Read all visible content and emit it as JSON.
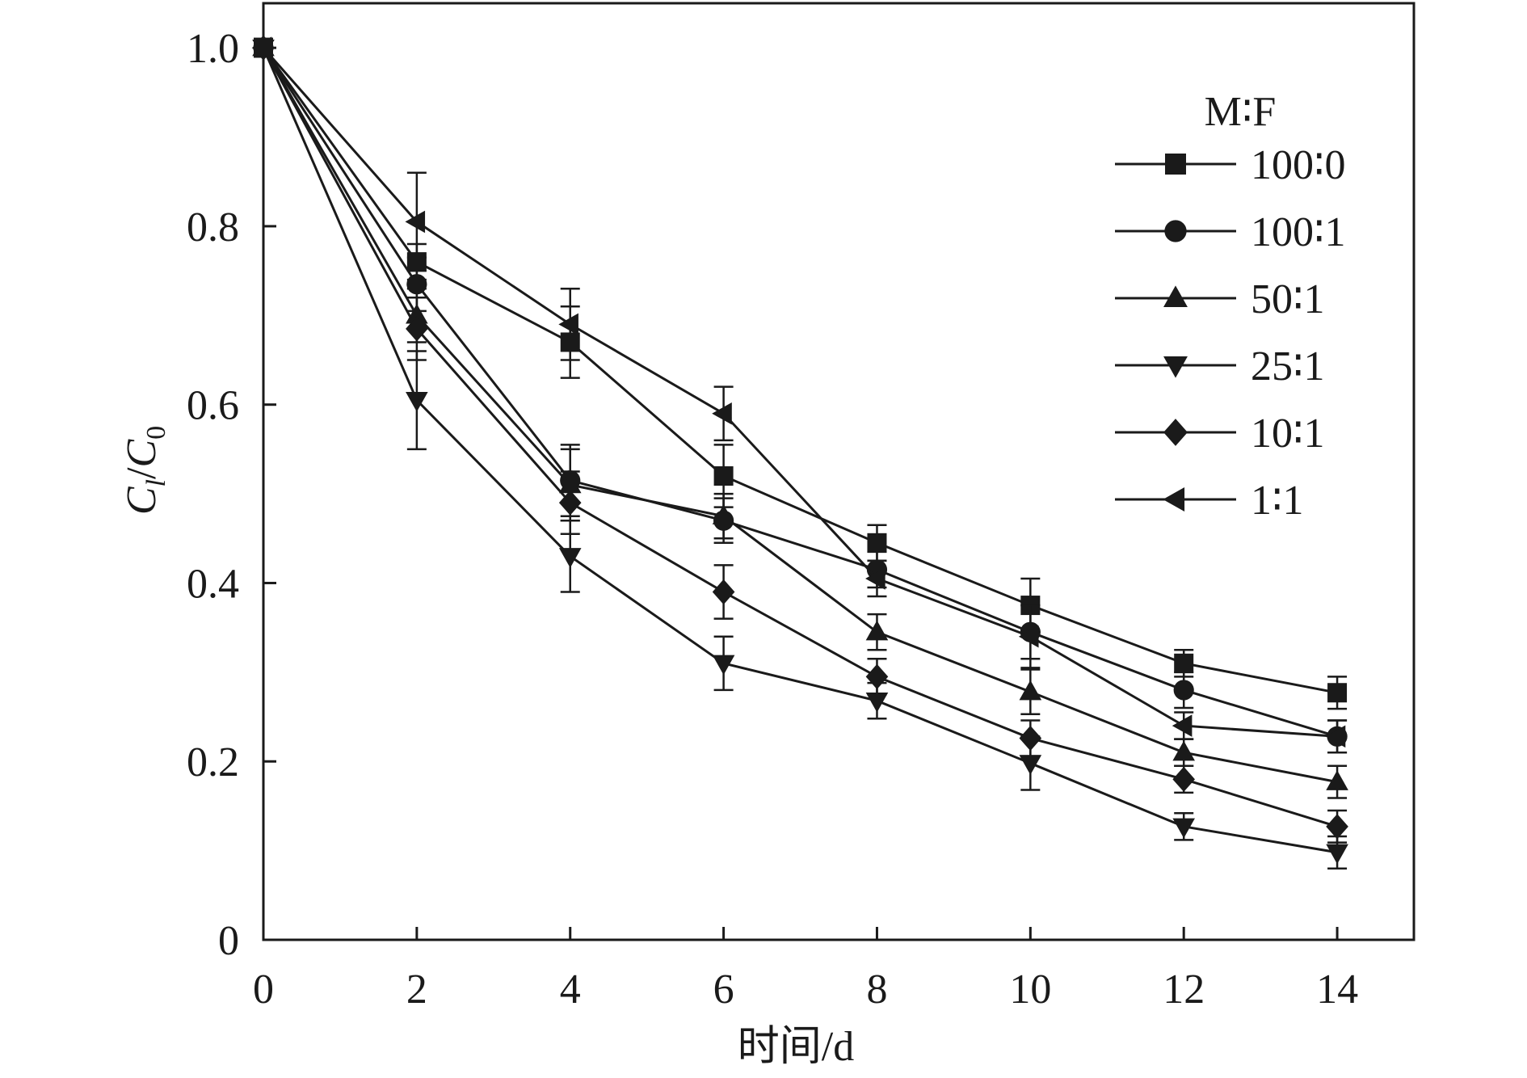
{
  "chart_data": {
    "type": "line",
    "xlabel": "时间/d",
    "ylabel": {
      "main": "C",
      "sub1": "l",
      "sep": "/",
      "main2": "C",
      "sub2": "0"
    },
    "xlim": [
      0,
      15
    ],
    "ylim": [
      0,
      1.05
    ],
    "xticks": [
      0,
      2,
      4,
      6,
      8,
      10,
      12,
      14
    ],
    "xtick_labels": [
      "0",
      "2",
      "4",
      "6",
      "8",
      "10",
      "12",
      "14"
    ],
    "yticks": [
      0,
      0.2,
      0.4,
      0.6,
      0.8,
      1.0
    ],
    "ytick_labels": [
      "0",
      "0.2",
      "0.4",
      "0.6",
      "0.8",
      "1.0"
    ],
    "grid": false,
    "legend_title": "M∶F",
    "legend_position": "top-right",
    "x": [
      0,
      2,
      4,
      6,
      8,
      10,
      12,
      14
    ],
    "series": [
      {
        "name": "100∶0",
        "marker": "square",
        "values": [
          1.0,
          0.76,
          0.67,
          0.52,
          0.445,
          0.375,
          0.31,
          0.277
        ],
        "errors": [
          0.01,
          0.02,
          0.04,
          0.035,
          0.02,
          0.03,
          0.015,
          0.018
        ]
      },
      {
        "name": "100∶1",
        "marker": "circle",
        "values": [
          1.0,
          0.735,
          0.515,
          0.47,
          0.415,
          0.345,
          0.28,
          0.228
        ],
        "errors": [
          0.01,
          0.03,
          0.04,
          0.025,
          0.02,
          0.03,
          0.02,
          0.018
        ]
      },
      {
        "name": "50∶1",
        "marker": "triangle-up",
        "values": [
          1.0,
          0.7,
          0.51,
          0.475,
          0.345,
          0.278,
          0.21,
          0.177
        ],
        "errors": [
          0.01,
          0.03,
          0.04,
          0.025,
          0.02,
          0.025,
          0.015,
          0.018
        ]
      },
      {
        "name": "25∶1",
        "marker": "triangle-down",
        "values": [
          1.0,
          0.605,
          0.43,
          0.31,
          0.268,
          0.198,
          0.127,
          0.098
        ],
        "errors": [
          0.01,
          0.055,
          0.04,
          0.03,
          0.02,
          0.03,
          0.015,
          0.018
        ]
      },
      {
        "name": "10∶1",
        "marker": "diamond",
        "values": [
          1.0,
          0.685,
          0.49,
          0.39,
          0.295,
          0.226,
          0.18,
          0.127
        ],
        "errors": [
          0.01,
          0.035,
          0.035,
          0.03,
          0.02,
          0.02,
          0.015,
          0.018
        ]
      },
      {
        "name": "1∶1",
        "marker": "triangle-left",
        "values": [
          1.0,
          0.805,
          0.69,
          0.59,
          0.405,
          0.34,
          0.24,
          0.228
        ],
        "errors": [
          0.01,
          0.055,
          0.04,
          0.03,
          0.02,
          0.035,
          0.015,
          0.018
        ]
      }
    ]
  }
}
